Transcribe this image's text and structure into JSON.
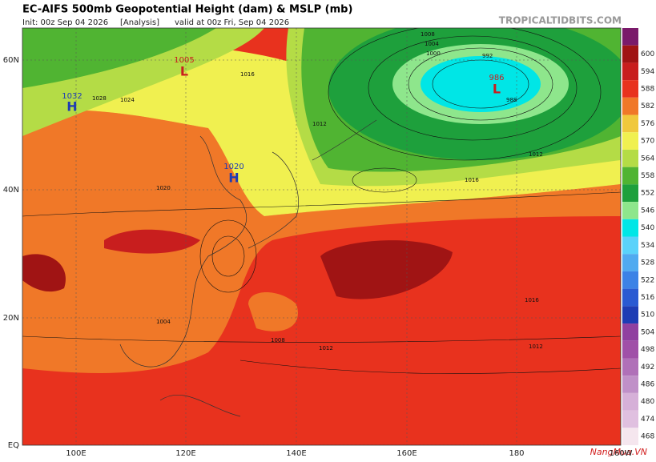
{
  "header": {
    "title": "EC-AIFS 500mb Geopotential Height (dam) & MSLP (mb)",
    "init": "Init: 00z Sep 04 2026",
    "run": "[Analysis]",
    "valid": "valid at 00z Fri, Sep 04 2026",
    "source": "TROPICALTIDBITS.COM"
  },
  "map": {
    "lat_labels": [
      "60N",
      "40N",
      "20N",
      "EQ"
    ],
    "lon_labels": [
      "100E",
      "120E",
      "140E",
      "160E",
      "180",
      "160W"
    ],
    "centers": [
      {
        "letter": "L",
        "value": "1005"
      },
      {
        "letter": "H",
        "value": "1032"
      },
      {
        "letter": "H",
        "value": "1020"
      },
      {
        "letter": "L",
        "value": "986"
      }
    ],
    "contour_labels": [
      "1008",
      "1004",
      "1000",
      "992",
      "988",
      "1012",
      "1016",
      "1016",
      "1012",
      "1012",
      "1008",
      "1004",
      "1016",
      "1012",
      "1024",
      "1028",
      "1020"
    ]
  },
  "colorbar": {
    "top_color": "#7a1a6a",
    "levels": [
      600,
      594,
      588,
      582,
      576,
      570,
      564,
      558,
      552,
      546,
      540,
      534,
      528,
      522,
      516,
      510,
      504,
      498,
      492,
      486,
      480,
      474,
      468
    ],
    "colors": [
      "#a01414",
      "#c81e1e",
      "#e8321e",
      "#f07828",
      "#f0c83c",
      "#f0f050",
      "#b4dc46",
      "#50b432",
      "#1ea03c",
      "#8ee68c",
      "#00e6e6",
      "#5ad2fa",
      "#50aaf0",
      "#3c82e6",
      "#2a5ad2",
      "#1e3cb4",
      "#9040a0",
      "#a050a8",
      "#b070b8",
      "#c090c8",
      "#d6b0d8",
      "#e0c0e0",
      "#f5e6ee"
    ]
  },
  "watermark": "NangMua.VN"
}
